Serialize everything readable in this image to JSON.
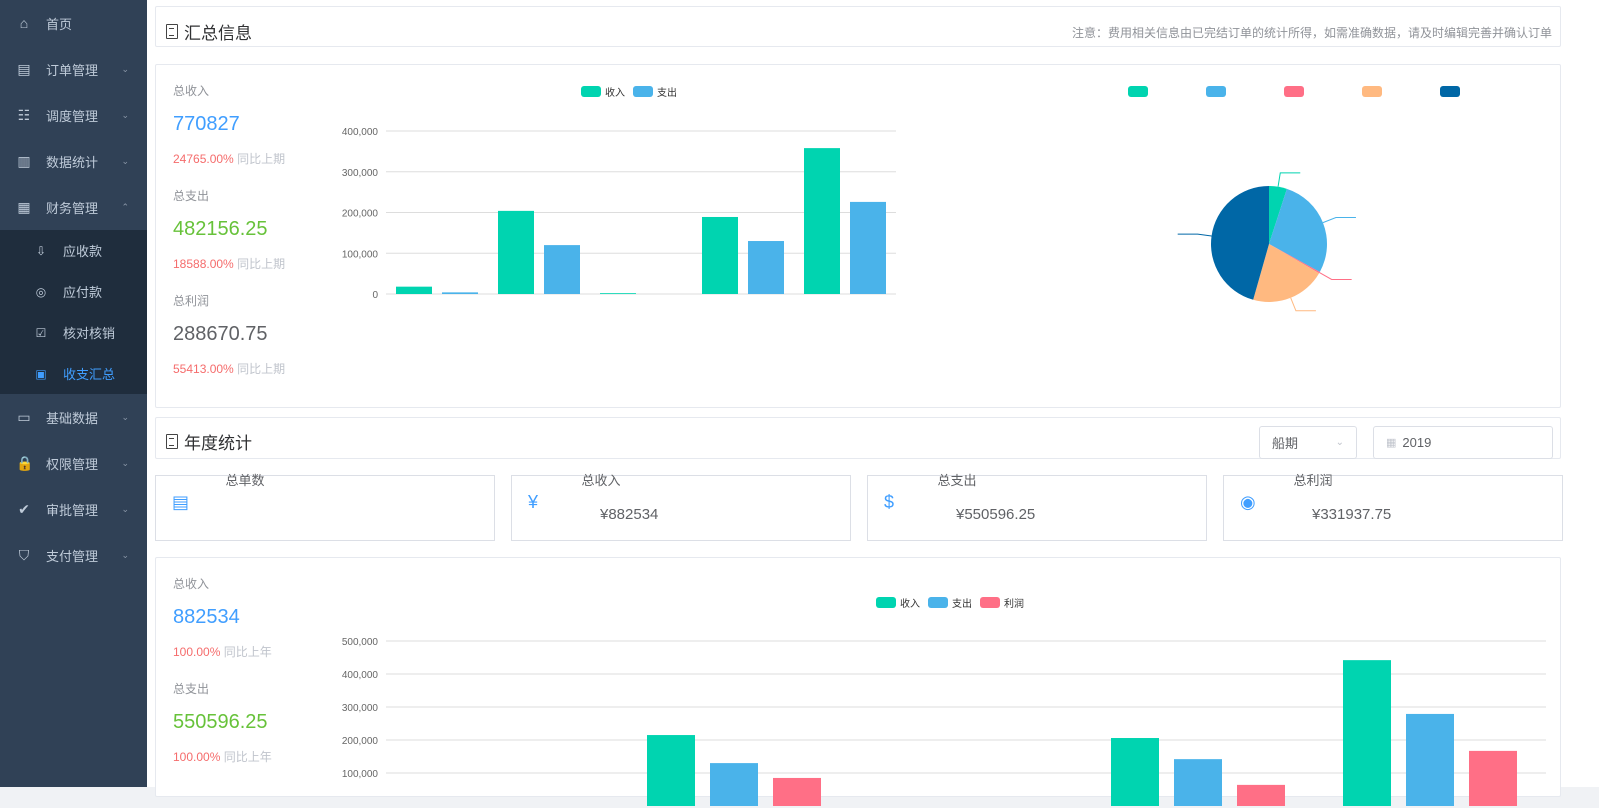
{
  "sidebar": {
    "items": [
      {
        "label": "首页",
        "icon": "home-icon",
        "glyph": "⌂"
      },
      {
        "label": "订单管理",
        "icon": "clipboard-icon",
        "glyph": "▤",
        "chev": "⌄"
      },
      {
        "label": "调度管理",
        "icon": "dispatch-icon",
        "glyph": "☷",
        "chev": "⌄"
      },
      {
        "label": "数据统计",
        "icon": "bar-chart-icon",
        "glyph": "▥",
        "chev": "⌄"
      },
      {
        "label": "财务管理",
        "icon": "finance-icon",
        "glyph": "▦",
        "chev": "⌃"
      }
    ],
    "sub": [
      {
        "label": "应收款",
        "icon": "download-icon",
        "glyph": "⇩"
      },
      {
        "label": "应付款",
        "icon": "eye-icon",
        "glyph": "◎"
      },
      {
        "label": "核对核销",
        "icon": "check-icon",
        "glyph": "☑"
      },
      {
        "label": "收支汇总",
        "icon": "summary-icon",
        "glyph": "▣",
        "active": true
      }
    ],
    "items2": [
      {
        "label": "基础数据",
        "icon": "monitor-icon",
        "glyph": "▭",
        "chev": "⌄"
      },
      {
        "label": "权限管理",
        "icon": "lock-icon",
        "glyph": "🔒",
        "chev": "⌄"
      },
      {
        "label": "审批管理",
        "icon": "approval-icon",
        "glyph": "✔",
        "chev": "⌄"
      },
      {
        "label": "支付管理",
        "icon": "payment-icon",
        "glyph": "⛉",
        "chev": "⌄"
      }
    ]
  },
  "summary": {
    "title": "汇总信息",
    "note": "注意：费用相关信息由已完结订单的统计所得，如需准确数据，请及时编辑完善并确认订单",
    "stats": [
      {
        "label": "总收入",
        "value": "770827",
        "pct": "24765.00%",
        "cmp": "同比上期",
        "color": "#409eff"
      },
      {
        "label": "总支出",
        "value": "482156.25",
        "pct": "18588.00%",
        "cmp": "同比上期",
        "color": "#67c23a"
      },
      {
        "label": "总利润",
        "value": "288670.75",
        "pct": "55413.00%",
        "cmp": "同比上期",
        "color": "#606266"
      }
    ]
  },
  "annual": {
    "title": "年度统计",
    "select": "船期",
    "year": "2019",
    "cards": [
      {
        "label": "总单数",
        "value": "",
        "icon": "clipboard-icon",
        "glyph": "▤"
      },
      {
        "label": "总收入",
        "value": "¥882534",
        "icon": "yuan-icon",
        "glyph": "¥"
      },
      {
        "label": "总支出",
        "value": "¥550596.25",
        "icon": "dollar-icon",
        "glyph": "$"
      },
      {
        "label": "总利润",
        "value": "¥331937.75",
        "icon": "coins-icon",
        "glyph": "◉"
      }
    ],
    "stats": [
      {
        "label": "总收入",
        "value": "882534",
        "pct": "100.00%",
        "cmp": "同比上年",
        "color": "#409eff"
      },
      {
        "label": "总支出",
        "value": "550596.25",
        "pct": "100.00%",
        "cmp": "同比上年",
        "color": "#67c23a"
      }
    ]
  },
  "chart_data": [
    {
      "type": "bar",
      "ylim": [
        0,
        400000
      ],
      "yticks": [
        "0",
        "100,000",
        "200,000",
        "300,000",
        "400,000"
      ],
      "categories": [
        "",
        "",
        "",
        "",
        ""
      ],
      "series": [
        {
          "name": "收入",
          "color": "#00d4b0",
          "values": [
            18000,
            204000,
            2000,
            189000,
            358000
          ]
        },
        {
          "name": "支出",
          "color": "#4ab3ea",
          "values": [
            4000,
            120000,
            0,
            130000,
            226000
          ]
        }
      ],
      "legend": "top",
      "grid": true
    },
    {
      "type": "pie",
      "values": [
        5,
        28,
        0.4,
        21,
        45.6
      ],
      "colors": [
        "#00d4b0",
        "#4ab3ea",
        "#ff6f86",
        "#ffb980",
        "#0067a6"
      ],
      "legend": "top"
    },
    {
      "type": "bar",
      "ylim": [
        0,
        500000
      ],
      "yticks": [
        "100,000",
        "200,000",
        "300,000",
        "400,000",
        "500,000"
      ],
      "categories": [
        "",
        "",
        "",
        "",
        ""
      ],
      "series": [
        {
          "name": "收入",
          "color": "#00d4b0",
          "values": [
            0,
            215000,
            0,
            206000,
            442000
          ]
        },
        {
          "name": "支出",
          "color": "#4ab3ea",
          "values": [
            0,
            130000,
            0,
            142000,
            279000
          ]
        },
        {
          "name": "利润",
          "color": "#ff6f86",
          "values": [
            0,
            85000,
            0,
            64000,
            167000
          ]
        }
      ],
      "legend": "top",
      "grid": true
    }
  ]
}
